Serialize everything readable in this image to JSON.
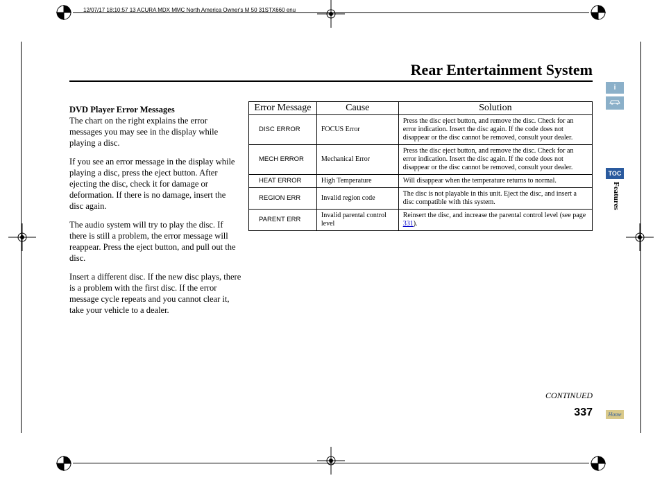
{
  "meta_header": "12/07/17 18:10:57   13 ACURA MDX MMC North America Owner's M 50 31STX660 enu",
  "page_title": "Rear Entertainment System",
  "section_head": "DVD Player Error Messages",
  "para1": "The chart on the right explains the error messages you may see in the display while playing a disc.",
  "para2": "If you see an error message in the display while playing a disc, press the eject button. After ejecting the disc, check it for damage or deformation. If there is no damage, insert the disc again.",
  "para3": "The audio system will try to play the disc. If there is still a problem, the error message will reappear. Press the eject button, and pull out the disc.",
  "para4": "Insert a different disc. If the new disc plays, there is a problem with the first disc. If the error message cycle repeats and you cannot clear it, take your vehicle to a dealer.",
  "table": {
    "headers": [
      "Error Message",
      "Cause",
      "Solution"
    ],
    "col_widths": [
      "98px",
      "118px",
      "280px"
    ],
    "rows": [
      {
        "err": "DISC ERROR",
        "cause": "FOCUS Error",
        "sol": "Press the disc eject button, and remove the disc. Check for an error indication. Insert the disc again. If the code does not disappear or the disc cannot be removed, consult your dealer."
      },
      {
        "err": "MECH ERROR",
        "cause": "Mechanical Error",
        "sol": "Press the disc eject button, and remove the disc. Check for an error indication. Insert the disc again. If the code does not disappear or the disc cannot be removed, consult your dealer."
      },
      {
        "err": "HEAT ERROR",
        "cause": "High Temperature",
        "sol": "Will disappear when the temperature returns to normal."
      },
      {
        "err": "REGION ERR",
        "cause": "Invalid region code",
        "sol": "The disc is not playable in this unit. Eject the disc, and insert a disc compatible with this system."
      },
      {
        "err": "PARENT ERR",
        "cause": "Invalid parental control level",
        "sol_prefix": "Reinsert the disc, and increase the parental control level (see page ",
        "sol_link": "331",
        "sol_suffix": ")."
      }
    ]
  },
  "continued": "CONTINUED",
  "page_number": "337",
  "tabs": {
    "info": "i",
    "car": "⚘",
    "toc": "TOC",
    "features": "Features",
    "home": "Home"
  },
  "colors": {
    "tab_light": "#8bb0c9",
    "tab_dark": "#2a5a9e",
    "tab_home": "#d9c98a",
    "link": "#0000cc"
  }
}
